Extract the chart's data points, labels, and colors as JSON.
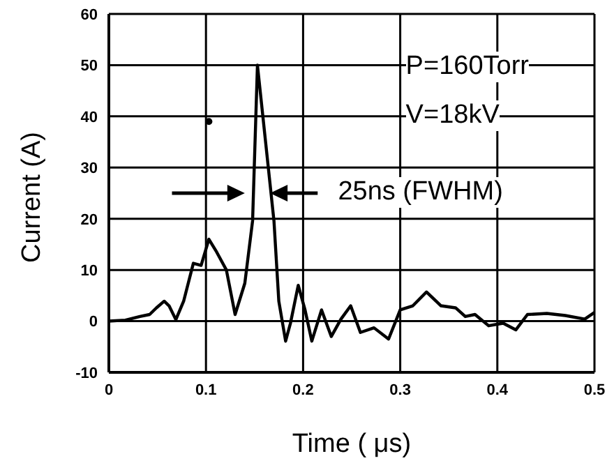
{
  "chart_data": {
    "type": "line",
    "xlabel": "Time ( μs)",
    "ylabel": "Current (A)",
    "xlim": [
      0,
      0.5
    ],
    "xticks": [
      0,
      0.1,
      0.2,
      0.3,
      0.4,
      0.5
    ],
    "ylim": [
      -10,
      60
    ],
    "yticks": [
      -10,
      0,
      10,
      20,
      30,
      40,
      50,
      60
    ],
    "grid": true,
    "marker": "none",
    "line_style": "solid",
    "annotations": [
      "P=160Torr",
      "V=18kV",
      "25ns (FWHM)"
    ],
    "series": [
      {
        "color": "#000000",
        "x": [
          0,
          0.017,
          0.032,
          0.042,
          0.049,
          0.057,
          0.062,
          0.069,
          0.077,
          0.087,
          0.095,
          0.103,
          0.111,
          0.121,
          0.13,
          0.14,
          0.148,
          0.153,
          0.17,
          0.175,
          0.182,
          0.187,
          0.195,
          0.202,
          0.209,
          0.219,
          0.229,
          0.239,
          0.249,
          0.259,
          0.273,
          0.288,
          0.3,
          0.313,
          0.327,
          0.342,
          0.357,
          0.367,
          0.377,
          0.391,
          0.406,
          0.419,
          0.431,
          0.451,
          0.47,
          0.49,
          0.5
        ],
        "values": [
          0,
          0.2,
          0.9,
          1.3,
          2.6,
          3.9,
          3,
          0.3,
          3.9,
          11.3,
          10.9,
          16,
          13.5,
          10,
          1.3,
          7.4,
          19.6,
          50,
          19.6,
          3.9,
          -3.9,
          -0.4,
          7,
          2.2,
          -3.9,
          2.2,
          -3,
          0.4,
          3,
          -2.2,
          -1.3,
          -3.5,
          2.2,
          3,
          5.7,
          3,
          2.6,
          0.9,
          1.3,
          -0.9,
          -0.4,
          -1.7,
          1.3,
          1.5,
          1.1,
          0.4,
          1.7
        ]
      },
      {
        "type": "scatter",
        "color": "#000000",
        "x": [
          0.103
        ],
        "values": [
          39
        ],
        "marker": "circle"
      }
    ]
  }
}
